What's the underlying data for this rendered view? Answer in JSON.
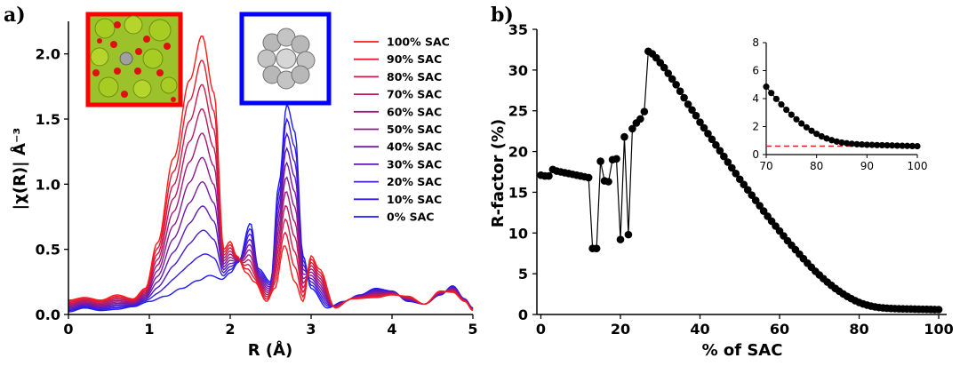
{
  "figure": {
    "label_a": "a)",
    "label_b": "b)"
  },
  "chart_data": [
    {
      "type": "line",
      "panel": "a)",
      "xlabel": "R (Å)",
      "ylabel": "|χ(R)| Å⁻³",
      "xlim": [
        0,
        5
      ],
      "ylim": [
        0,
        2.25
      ],
      "xticks": [
        "0",
        "1",
        "2",
        "3",
        "4",
        "5"
      ],
      "yticks": [
        "0.0",
        "0.5",
        "1.0",
        "1.5",
        "2.0"
      ],
      "legend_position": "top-right",
      "colors": {
        "sac": "#ff1a1a",
        "bulk": "#1a1aff"
      },
      "series": [
        {
          "name": "100% SAC",
          "sac_fraction": 1.0
        },
        {
          "name": "90% SAC",
          "sac_fraction": 0.9
        },
        {
          "name": "80% SAC",
          "sac_fraction": 0.8
        },
        {
          "name": "70% SAC",
          "sac_fraction": 0.7
        },
        {
          "name": "60% SAC",
          "sac_fraction": 0.6
        },
        {
          "name": "50% SAC",
          "sac_fraction": 0.5
        },
        {
          "name": "40% SAC",
          "sac_fraction": 0.4
        },
        {
          "name": "30% SAC",
          "sac_fraction": 0.3
        },
        {
          "name": "20% SAC",
          "sac_fraction": 0.2
        },
        {
          "name": "10% SAC",
          "sac_fraction": 0.1
        },
        {
          "name": "0% SAC",
          "sac_fraction": 0.0
        }
      ],
      "endmember_100_SAC": {
        "x": [
          0,
          0.2,
          0.4,
          0.6,
          0.8,
          0.95,
          1.1,
          1.3,
          1.5,
          1.65,
          1.8,
          1.92,
          2.0,
          2.08,
          2.2,
          2.3,
          2.45,
          2.55,
          2.67,
          2.8,
          2.9,
          3.0,
          3.1,
          3.3,
          3.5,
          3.8,
          4.0,
          4.2,
          4.4,
          4.6,
          4.75,
          4.9,
          5.0
        ],
        "y": [
          0.11,
          0.13,
          0.11,
          0.15,
          0.12,
          0.2,
          0.55,
          1.2,
          1.8,
          2.14,
          1.7,
          0.5,
          0.56,
          0.45,
          0.32,
          0.25,
          0.1,
          0.2,
          0.53,
          0.25,
          0.1,
          0.45,
          0.35,
          0.05,
          0.12,
          0.13,
          0.15,
          0.14,
          0.08,
          0.18,
          0.17,
          0.1,
          0.03
        ]
      },
      "endmember_0_SAC": {
        "x": [
          0,
          0.2,
          0.4,
          0.6,
          0.8,
          1.0,
          1.2,
          1.4,
          1.6,
          1.75,
          1.9,
          2.0,
          2.1,
          2.25,
          2.35,
          2.5,
          2.6,
          2.7,
          2.8,
          2.9,
          3.0,
          3.2,
          3.4,
          3.6,
          3.8,
          4.0,
          4.2,
          4.4,
          4.6,
          4.75,
          4.9,
          5.0
        ],
        "y": [
          0.02,
          0.05,
          0.03,
          0.04,
          0.06,
          0.1,
          0.14,
          0.2,
          0.26,
          0.3,
          0.27,
          0.32,
          0.4,
          0.7,
          0.35,
          0.25,
          1.0,
          1.61,
          1.4,
          0.45,
          0.2,
          0.05,
          0.1,
          0.15,
          0.2,
          0.18,
          0.1,
          0.08,
          0.15,
          0.22,
          0.12,
          0.05
        ]
      },
      "insets": {
        "sac_model": "SAC structure",
        "bulk_model": "metal cluster"
      }
    },
    {
      "type": "scatter",
      "panel": "b)",
      "xlabel": "% of SAC",
      "ylabel": "R-factor (%)",
      "xlim": [
        -1,
        102
      ],
      "ylim": [
        0,
        35
      ],
      "xticks": [
        "0",
        "20",
        "40",
        "60",
        "80",
        "100"
      ],
      "yticks": [
        "0",
        "5",
        "10",
        "15",
        "20",
        "25",
        "30",
        "35"
      ],
      "x": [
        0,
        1,
        2,
        3,
        4,
        5,
        6,
        7,
        8,
        9,
        10,
        11,
        12,
        13,
        14,
        15,
        16,
        17,
        18,
        19,
        20,
        21,
        22,
        23,
        24,
        25,
        26,
        27,
        28,
        29,
        30,
        31,
        32,
        33,
        34,
        35,
        36,
        37,
        38,
        39,
        40,
        41,
        42,
        43,
        44,
        45,
        46,
        47,
        48,
        49,
        50,
        51,
        52,
        53,
        54,
        55,
        56,
        57,
        58,
        59,
        60,
        61,
        62,
        63,
        64,
        65,
        66,
        67,
        68,
        69,
        70,
        71,
        72,
        73,
        74,
        75,
        76,
        77,
        78,
        79,
        80,
        81,
        82,
        83,
        84,
        85,
        86,
        87,
        88,
        89,
        90,
        91,
        92,
        93,
        94,
        95,
        96,
        97,
        98,
        99,
        100
      ],
      "y": [
        17.1,
        17.0,
        17.0,
        17.8,
        17.6,
        17.5,
        17.4,
        17.3,
        17.2,
        17.1,
        17.0,
        16.9,
        16.8,
        8.1,
        8.1,
        18.8,
        16.4,
        16.3,
        19.0,
        19.1,
        9.2,
        21.8,
        9.8,
        22.8,
        23.5,
        24.0,
        24.9,
        32.3,
        32.0,
        31.5,
        30.9,
        30.3,
        29.6,
        28.9,
        28.2,
        27.4,
        26.6,
        25.8,
        25.1,
        24.4,
        23.6,
        22.9,
        22.2,
        21.5,
        20.8,
        20.1,
        19.4,
        18.7,
        18.0,
        17.3,
        16.6,
        15.95,
        15.3,
        14.65,
        14.0,
        13.35,
        12.7,
        12.05,
        11.45,
        10.85,
        10.25,
        9.65,
        9.05,
        8.5,
        7.95,
        7.4,
        6.85,
        6.3,
        5.8,
        5.3,
        4.85,
        4.4,
        3.98,
        3.58,
        3.2,
        2.85,
        2.52,
        2.22,
        1.95,
        1.7,
        1.48,
        1.3,
        1.15,
        1.03,
        0.93,
        0.86,
        0.81,
        0.77,
        0.74,
        0.72,
        0.7,
        0.69,
        0.68,
        0.67,
        0.66,
        0.65,
        0.64,
        0.63,
        0.62,
        0.61,
        0.6
      ],
      "colors": {
        "marker": "#000000"
      },
      "inset": {
        "xlim": [
          70,
          100
        ],
        "ylim": [
          0,
          8
        ],
        "xticks": [
          "70",
          "80",
          "90",
          "100"
        ],
        "yticks": [
          "0",
          "2",
          "4",
          "6",
          "8"
        ],
        "threshold": 0.6,
        "threshold_color": "#e02020"
      }
    }
  ]
}
